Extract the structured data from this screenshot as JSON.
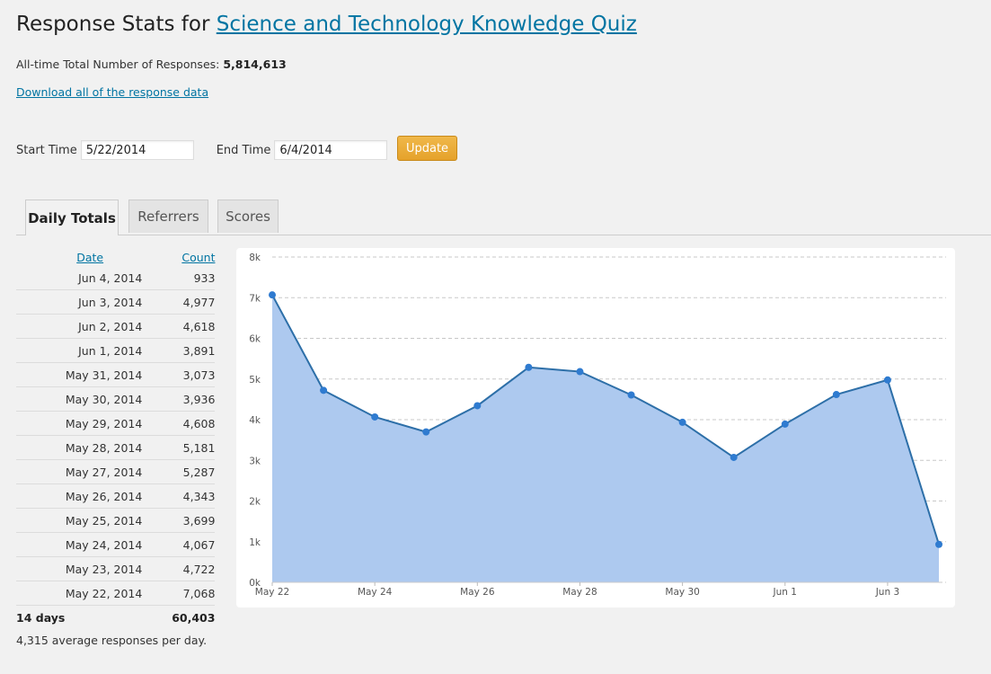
{
  "header": {
    "title_prefix": "Response Stats for",
    "quiz_link": "Science and Technology Knowledge Quiz"
  },
  "summary": {
    "total_label": "All-time Total Number of Responses:",
    "total_value": "5,814,613",
    "download_link": "Download all of the response data"
  },
  "filters": {
    "start_label": "Start Time",
    "start_value": "5/22/2014",
    "end_label": "End Time",
    "end_value": "6/4/2014",
    "update_label": "Update"
  },
  "tabs": [
    {
      "label": "Daily Totals",
      "active": true
    },
    {
      "label": "Referrers",
      "active": false
    },
    {
      "label": "Scores",
      "active": false
    }
  ],
  "table": {
    "headers": {
      "date": "Date",
      "count": "Count"
    },
    "rows": [
      {
        "date": "Jun 4, 2014",
        "count": "933"
      },
      {
        "date": "Jun 3, 2014",
        "count": "4,977"
      },
      {
        "date": "Jun 2, 2014",
        "count": "4,618"
      },
      {
        "date": "Jun 1, 2014",
        "count": "3,891"
      },
      {
        "date": "May 31, 2014",
        "count": "3,073"
      },
      {
        "date": "May 30, 2014",
        "count": "3,936"
      },
      {
        "date": "May 29, 2014",
        "count": "4,608"
      },
      {
        "date": "May 28, 2014",
        "count": "5,181"
      },
      {
        "date": "May 27, 2014",
        "count": "5,287"
      },
      {
        "date": "May 26, 2014",
        "count": "4,343"
      },
      {
        "date": "May 25, 2014",
        "count": "3,699"
      },
      {
        "date": "May 24, 2014",
        "count": "4,067"
      },
      {
        "date": "May 23, 2014",
        "count": "4,722"
      },
      {
        "date": "May 22, 2014",
        "count": "7,068"
      }
    ],
    "total_days": "14 days",
    "total_count": "60,403",
    "average_text": "4,315 average responses per day."
  },
  "colors": {
    "link": "#0074a2",
    "area_fill": "#adc9ef",
    "line": "#2d6fa8",
    "point": "#2f7bd0",
    "button": "#e8a830"
  },
  "chart_data": {
    "type": "area",
    "x": [
      "May 22",
      "May 23",
      "May 24",
      "May 25",
      "May 26",
      "May 27",
      "May 28",
      "May 29",
      "May 30",
      "May 31",
      "Jun 1",
      "Jun 2",
      "Jun 3",
      "Jun 4"
    ],
    "values": [
      7068,
      4722,
      4067,
      3699,
      4343,
      5287,
      5181,
      4608,
      3936,
      3073,
      3891,
      4618,
      4977,
      933
    ],
    "x_tick_labels": [
      "May 22",
      "May 24",
      "May 26",
      "May 28",
      "May 30",
      "Jun 1",
      "Jun 3"
    ],
    "y_tick_labels": [
      "0k",
      "1k",
      "2k",
      "3k",
      "4k",
      "5k",
      "6k",
      "7k",
      "8k"
    ],
    "ylim": [
      0,
      8000
    ],
    "grid": "horizontal dashed",
    "legend": "none",
    "title": "",
    "xlabel": "",
    "ylabel": ""
  }
}
